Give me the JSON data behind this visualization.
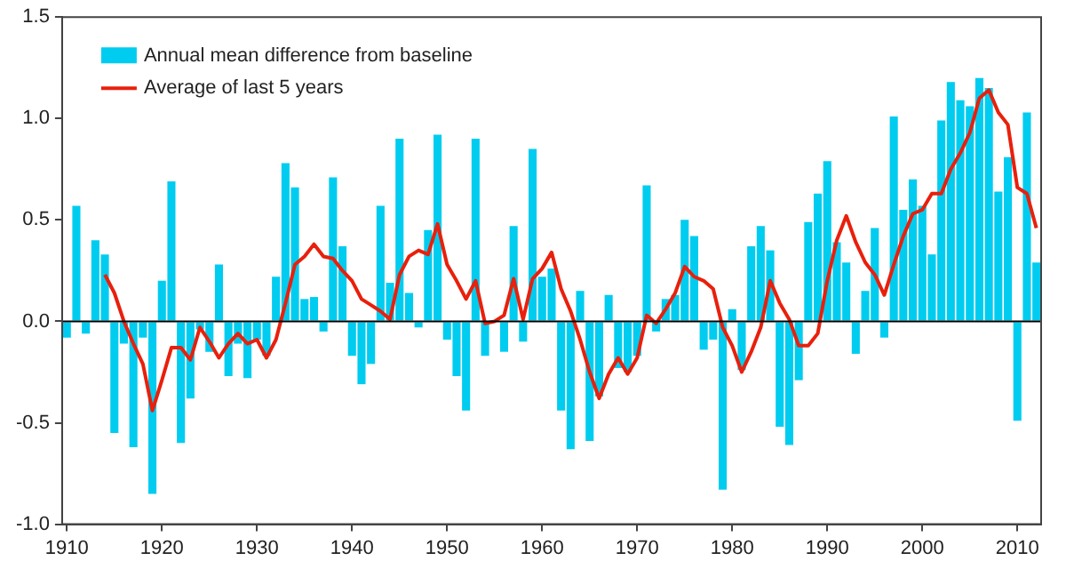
{
  "chart_data": {
    "type": "bar",
    "x": [
      1910,
      1911,
      1912,
      1913,
      1914,
      1915,
      1916,
      1917,
      1918,
      1919,
      1920,
      1921,
      1922,
      1923,
      1924,
      1925,
      1926,
      1927,
      1928,
      1929,
      1930,
      1931,
      1932,
      1933,
      1934,
      1935,
      1936,
      1937,
      1938,
      1939,
      1940,
      1941,
      1942,
      1943,
      1944,
      1945,
      1946,
      1947,
      1948,
      1949,
      1950,
      1951,
      1952,
      1953,
      1954,
      1955,
      1956,
      1957,
      1958,
      1959,
      1960,
      1961,
      1962,
      1963,
      1964,
      1965,
      1966,
      1967,
      1968,
      1969,
      1970,
      1971,
      1972,
      1973,
      1974,
      1975,
      1976,
      1977,
      1978,
      1979,
      1980,
      1981,
      1982,
      1983,
      1984,
      1985,
      1986,
      1987,
      1988,
      1989,
      1990,
      1991,
      1992,
      1993,
      1994,
      1995,
      1996,
      1997,
      1998,
      1999,
      2000,
      2001,
      2002,
      2003,
      2004,
      2005,
      2006,
      2007,
      2008,
      2009,
      2010,
      2011,
      2012
    ],
    "series": [
      {
        "name": "Annual mean difference from baseline",
        "color": "#00ccf0",
        "values": [
          -0.08,
          0.57,
          -0.06,
          0.4,
          0.33,
          -0.55,
          -0.11,
          -0.62,
          -0.08,
          -0.85,
          0.2,
          0.69,
          -0.6,
          -0.38,
          -0.04,
          -0.15,
          0.28,
          -0.27,
          -0.11,
          -0.28,
          -0.09,
          -0.17,
          0.22,
          0.78,
          0.66,
          0.11,
          0.12,
          -0.05,
          0.71,
          0.37,
          -0.17,
          -0.31,
          -0.21,
          0.57,
          0.19,
          0.9,
          0.14,
          -0.03,
          0.45,
          0.92,
          -0.09,
          -0.27,
          -0.44,
          0.9,
          -0.17,
          0.0,
          -0.15,
          0.47,
          -0.1,
          0.85,
          0.22,
          0.26,
          -0.44,
          -0.63,
          0.15,
          -0.59,
          -0.37,
          0.13,
          -0.23,
          -0.25,
          -0.17,
          0.67,
          -0.05,
          0.11,
          0.13,
          0.5,
          0.42,
          -0.14,
          -0.09,
          -0.83,
          0.06,
          -0.24,
          0.37,
          0.47,
          0.35,
          -0.52,
          -0.61,
          -0.29,
          0.49,
          0.63,
          0.79,
          0.39,
          0.29,
          -0.16,
          0.15,
          0.46,
          -0.08,
          1.01,
          0.55,
          0.7,
          0.57,
          0.33,
          0.99,
          1.18,
          1.09,
          1.06,
          1.2,
          1.15,
          0.64,
          0.81,
          -0.49,
          1.03,
          0.29
        ]
      },
      {
        "name": "Average of last 5 years",
        "type": "line",
        "color": "#e8200c",
        "x": [
          1914,
          1915,
          1916,
          1917,
          1918,
          1919,
          1920,
          1921,
          1922,
          1923,
          1924,
          1925,
          1926,
          1927,
          1928,
          1929,
          1930,
          1931,
          1932,
          1933,
          1934,
          1935,
          1936,
          1937,
          1938,
          1939,
          1940,
          1941,
          1942,
          1943,
          1944,
          1945,
          1946,
          1947,
          1948,
          1949,
          1950,
          1951,
          1952,
          1953,
          1954,
          1955,
          1956,
          1957,
          1958,
          1959,
          1960,
          1961,
          1962,
          1963,
          1964,
          1965,
          1966,
          1967,
          1968,
          1969,
          1970,
          1971,
          1972,
          1973,
          1974,
          1975,
          1976,
          1977,
          1978,
          1979,
          1980,
          1981,
          1982,
          1983,
          1984,
          1985,
          1986,
          1987,
          1988,
          1989,
          1990,
          1991,
          1992,
          1993,
          1994,
          1995,
          1996,
          1997,
          1998,
          1999,
          2000,
          2001,
          2002,
          2003,
          2004,
          2005,
          2006,
          2007,
          2008,
          2009,
          2010,
          2011,
          2012
        ],
        "values": [
          0.23,
          0.14,
          0.0,
          -0.11,
          -0.21,
          -0.44,
          -0.29,
          -0.13,
          -0.13,
          -0.19,
          -0.03,
          -0.1,
          -0.18,
          -0.11,
          -0.06,
          -0.11,
          -0.09,
          -0.18,
          -0.09,
          0.09,
          0.28,
          0.32,
          0.38,
          0.32,
          0.31,
          0.25,
          0.2,
          0.11,
          0.08,
          0.05,
          0.01,
          0.23,
          0.32,
          0.35,
          0.33,
          0.48,
          0.28,
          0.2,
          0.11,
          0.2,
          -0.01,
          0.0,
          0.03,
          0.21,
          0.01,
          0.21,
          0.26,
          0.34,
          0.16,
          0.05,
          -0.09,
          -0.25,
          -0.38,
          -0.26,
          -0.18,
          -0.26,
          -0.18,
          0.03,
          -0.01,
          0.06,
          0.14,
          0.27,
          0.22,
          0.2,
          0.16,
          -0.03,
          -0.12,
          -0.25,
          -0.15,
          -0.03,
          0.2,
          0.09,
          0.01,
          -0.12,
          -0.12,
          -0.06,
          0.2,
          0.4,
          0.52,
          0.39,
          0.29,
          0.23,
          0.13,
          0.28,
          0.42,
          0.53,
          0.55,
          0.63,
          0.63,
          0.75,
          0.83,
          0.93,
          1.1,
          1.14,
          1.03,
          0.97,
          0.66,
          0.63,
          0.46
        ]
      }
    ],
    "xlim": [
      1909.5,
      2012.5
    ],
    "xticks": [
      1910,
      1920,
      1930,
      1940,
      1950,
      1960,
      1970,
      1980,
      1990,
      2000,
      2010
    ],
    "ylim": [
      -1.0,
      1.5
    ],
    "yticks": [
      {
        "value": -1.0,
        "label": "-1.0"
      },
      {
        "value": -0.5,
        "label": "-0.5"
      },
      {
        "value": 0,
        "label": "0.0"
      },
      {
        "value": 0.5,
        "label": "0.5"
      },
      {
        "value": 1.0,
        "label": "1.0"
      },
      1.5
    ],
    "legend": "top left",
    "marker": "none",
    "line_style": "solid"
  }
}
